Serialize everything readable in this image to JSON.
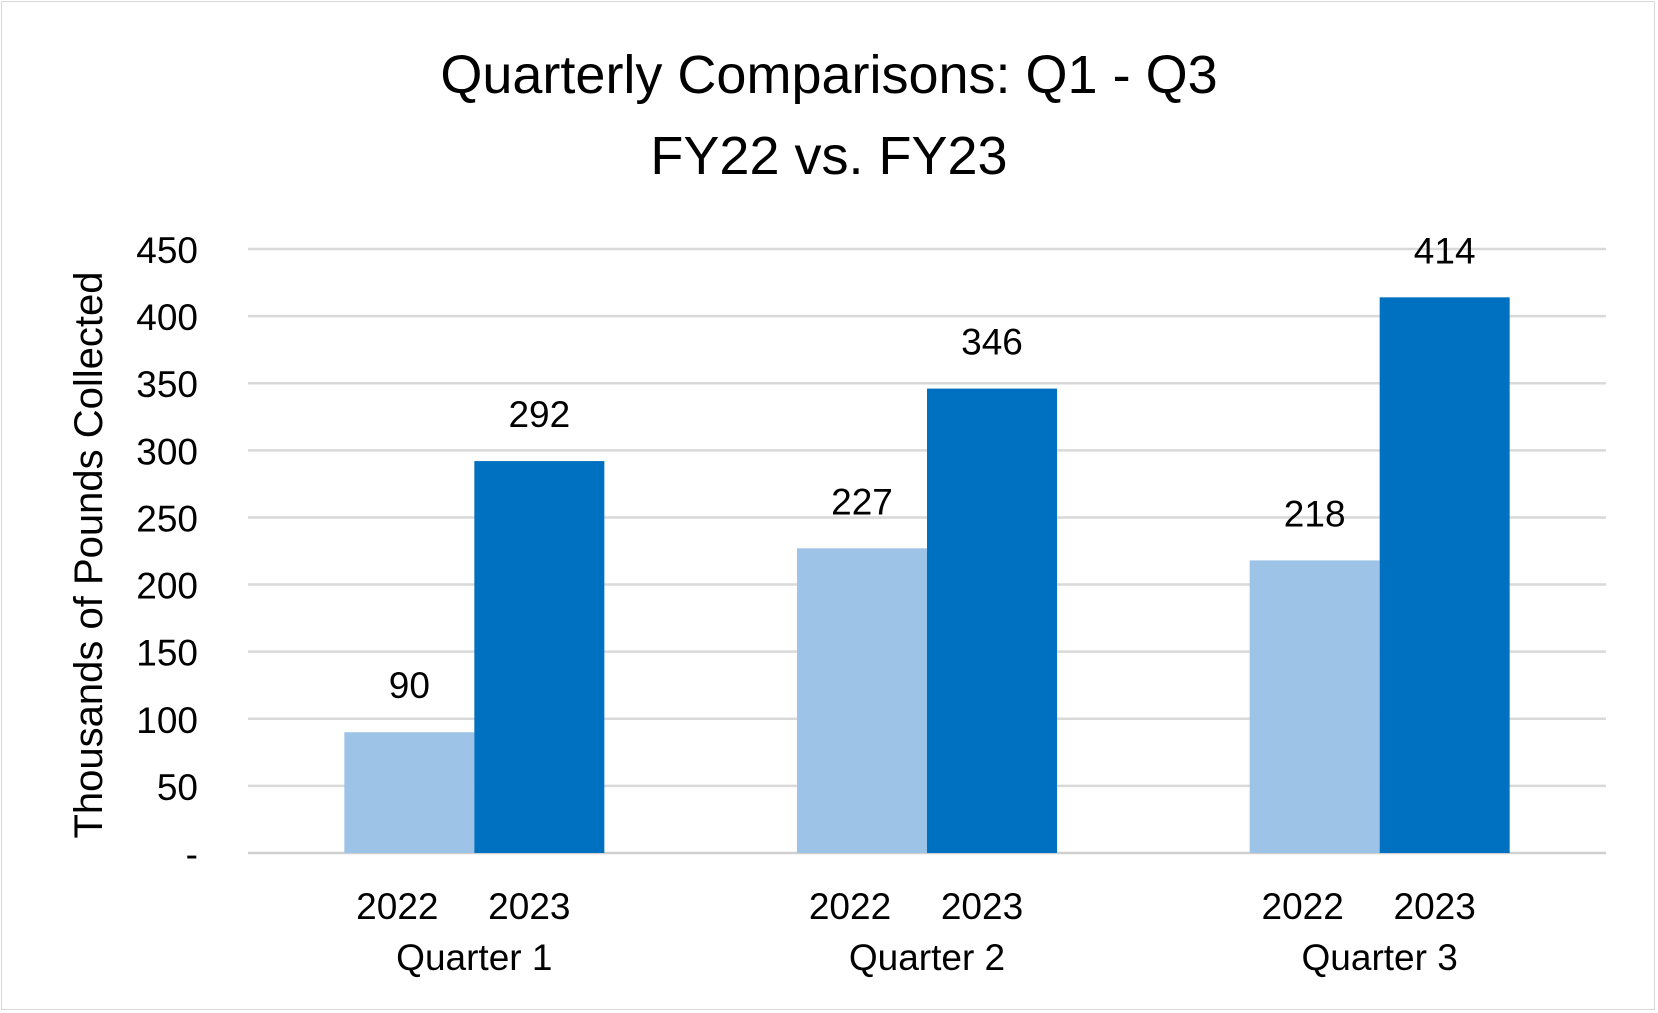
{
  "chart_data": {
    "type": "bar",
    "title": [
      "Quarterly Comparisons: Q1 - Q3",
      "FY22 vs. FY23"
    ],
    "ylabel": "Thousands of Pounds Collected",
    "xlabel": "",
    "ylim": [
      0,
      450
    ],
    "y_ticks": [
      {
        "value": 0,
        "label": "-"
      },
      {
        "value": 50,
        "label": "50"
      },
      {
        "value": 100,
        "label": "100"
      },
      {
        "value": 150,
        "label": "150"
      },
      {
        "value": 200,
        "label": "200"
      },
      {
        "value": 250,
        "label": "250"
      },
      {
        "value": 300,
        "label": "300"
      },
      {
        "value": 350,
        "label": "350"
      },
      {
        "value": 400,
        "label": "400"
      },
      {
        "value": 450,
        "label": "450"
      }
    ],
    "grid": true,
    "legend": "none",
    "categories": [
      "Quarter 1",
      "Quarter 2",
      "Quarter 3"
    ],
    "sub_categories": [
      "2022",
      "2023"
    ],
    "series": [
      {
        "year": "2022",
        "color": "#9dc3e6",
        "values": [
          90,
          227,
          218
        ]
      },
      {
        "year": "2023",
        "color": "#0070c0",
        "values": [
          292,
          346,
          414
        ]
      }
    ],
    "data_labels": true
  }
}
